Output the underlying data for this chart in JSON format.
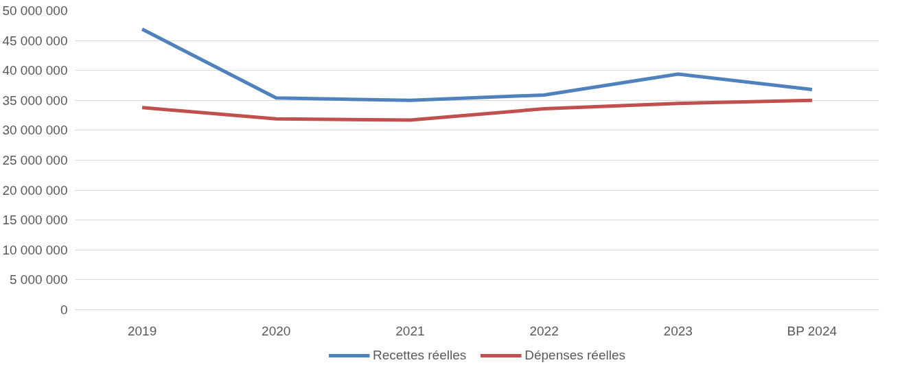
{
  "chart_data": {
    "type": "line",
    "categories": [
      "2019",
      "2020",
      "2021",
      "2022",
      "2023",
      "BP 2024"
    ],
    "series": [
      {
        "name": "Recettes réelles",
        "color": "#4f81bd",
        "values": [
          46900000,
          35400000,
          35000000,
          35900000,
          39400000,
          36800000
        ]
      },
      {
        "name": "Dépenses réelles",
        "color": "#c0504d",
        "values": [
          33800000,
          31900000,
          31700000,
          33600000,
          34500000,
          35000000
        ]
      }
    ],
    "ylim": [
      0,
      50000000
    ],
    "yticks": [
      {
        "value": 0,
        "label": "0"
      },
      {
        "value": 5000000,
        "label": "5 000 000"
      },
      {
        "value": 10000000,
        "label": "10 000 000"
      },
      {
        "value": 15000000,
        "label": "15 000 000"
      },
      {
        "value": 20000000,
        "label": "20 000 000"
      },
      {
        "value": 25000000,
        "label": "25 000 000"
      },
      {
        "value": 30000000,
        "label": "30 000 000"
      },
      {
        "value": 35000000,
        "label": "35 000 000"
      },
      {
        "value": 40000000,
        "label": "40 000 000"
      },
      {
        "value": 45000000,
        "label": "45 000 000"
      },
      {
        "value": 50000000,
        "label": "50 000 000"
      }
    ],
    "grid": "y",
    "legend": "bottom",
    "marker": "none",
    "line_style": "solid"
  }
}
